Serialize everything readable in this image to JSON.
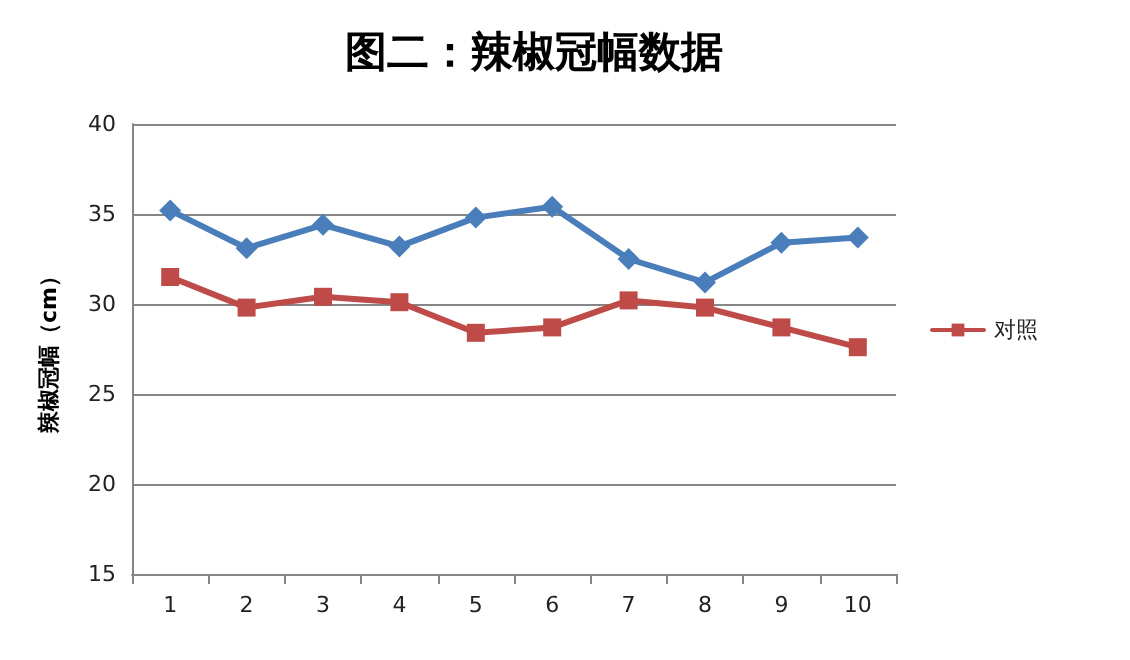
{
  "chart_data": {
    "type": "line",
    "title": "图二：辣椒冠幅数据",
    "ylabel": "辣椒冠幅（cm）",
    "categories": [
      "1",
      "2",
      "3",
      "4",
      "5",
      "6",
      "7",
      "8",
      "9",
      "10"
    ],
    "series": [
      {
        "color": "#4a7ebb",
        "marker": "diamond",
        "values": [
          35.2,
          33.1,
          34.4,
          33.2,
          34.8,
          35.4,
          32.5,
          31.2,
          33.4,
          33.7
        ]
      },
      {
        "name": "对照",
        "color": "#be4b48",
        "marker": "square",
        "values": [
          31.5,
          29.8,
          30.4,
          30.1,
          28.4,
          28.7,
          30.2,
          29.8,
          28.7,
          27.6
        ]
      }
    ],
    "ylim": [
      15,
      40
    ],
    "yticks": [
      15,
      20,
      25,
      30,
      35,
      40
    ],
    "grid": "y",
    "legend": "right",
    "line_style": "solid"
  }
}
